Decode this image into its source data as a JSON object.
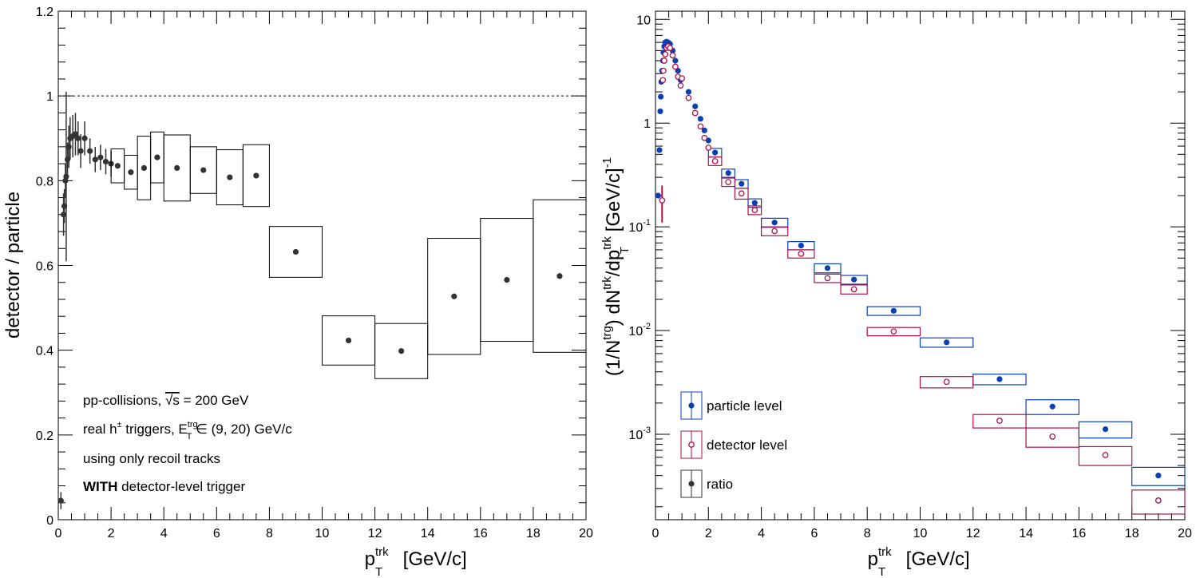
{
  "chart_data": [
    {
      "type": "scatter",
      "title": "",
      "xlabel": "p_T^trk [GeV/c]",
      "ylabel": "detector / particle",
      "xlim": [
        0,
        20
      ],
      "ylim": [
        0,
        1.2
      ],
      "x_ticks": [
        "0",
        "2",
        "4",
        "6",
        "8",
        "10",
        "12",
        "14",
        "16",
        "18",
        "20"
      ],
      "y_ticks": [
        "0",
        "0.2",
        "0.4",
        "0.6",
        "0.8",
        "1",
        "1.2"
      ],
      "reference_line": 1,
      "series": [
        {
          "name": "ratio",
          "color": "#333333",
          "points": [
            {
              "x": 0.1,
              "y": 0.045,
              "x_lo": 0.05,
              "x_hi": 0.15,
              "err": 0.02
            },
            {
              "x": 0.2,
              "y": 0.72,
              "err": 0.05
            },
            {
              "x": 0.23,
              "y": 0.74,
              "err": 0.04
            },
            {
              "x": 0.27,
              "y": 0.8,
              "err": 0.04
            },
            {
              "x": 0.3,
              "y": 0.81,
              "err": 0.2
            },
            {
              "x": 0.35,
              "y": 0.85,
              "err": 0.04
            },
            {
              "x": 0.4,
              "y": 0.88,
              "err": 0.05
            },
            {
              "x": 0.45,
              "y": 0.9,
              "err": 0.05
            },
            {
              "x": 0.55,
              "y": 0.905,
              "err": 0.05
            },
            {
              "x": 0.65,
              "y": 0.91,
              "err": 0.05
            },
            {
              "x": 0.75,
              "y": 0.9,
              "err": 0.04
            },
            {
              "x": 0.85,
              "y": 0.87,
              "err": 0.04
            },
            {
              "x": 1.0,
              "y": 0.9,
              "err": 0.04
            },
            {
              "x": 1.2,
              "y": 0.87,
              "err": 0.03
            },
            {
              "x": 1.4,
              "y": 0.85,
              "err": 0.03
            },
            {
              "x": 1.6,
              "y": 0.855,
              "err": 0.03
            },
            {
              "x": 1.8,
              "y": 0.845,
              "err": 0.03
            },
            {
              "x": 2.0,
              "y": 0.84,
              "err": 0.03
            },
            {
              "x": 2.25,
              "y": 0.835,
              "x_lo": 2.0,
              "x_hi": 2.5,
              "syst": 0.04
            },
            {
              "x": 2.75,
              "y": 0.82,
              "x_lo": 2.5,
              "x_hi": 3.0,
              "syst": 0.04
            },
            {
              "x": 3.25,
              "y": 0.83,
              "x_lo": 3.0,
              "x_hi": 3.5,
              "syst": 0.075
            },
            {
              "x": 3.75,
              "y": 0.855,
              "x_lo": 3.5,
              "x_hi": 4.0,
              "syst": 0.06
            },
            {
              "x": 4.5,
              "y": 0.83,
              "x_lo": 4.0,
              "x_hi": 5.0,
              "syst": 0.078
            },
            {
              "x": 5.5,
              "y": 0.825,
              "x_lo": 5.0,
              "x_hi": 6.0,
              "syst": 0.055
            },
            {
              "x": 6.5,
              "y": 0.808,
              "x_lo": 6.0,
              "x_hi": 7.0,
              "syst": 0.065
            },
            {
              "x": 7.5,
              "y": 0.812,
              "x_lo": 7.0,
              "x_hi": 8.0,
              "syst": 0.073
            },
            {
              "x": 9,
              "y": 0.632,
              "x_lo": 8,
              "x_hi": 10,
              "syst": 0.06
            },
            {
              "x": 11,
              "y": 0.423,
              "x_lo": 10,
              "x_hi": 12,
              "syst": 0.058
            },
            {
              "x": 13,
              "y": 0.398,
              "x_lo": 12,
              "x_hi": 14,
              "syst": 0.065
            },
            {
              "x": 15,
              "y": 0.527,
              "x_lo": 14,
              "x_hi": 16,
              "syst": 0.137
            },
            {
              "x": 17,
              "y": 0.566,
              "x_lo": 16,
              "x_hi": 18,
              "syst": 0.145
            },
            {
              "x": 19,
              "y": 0.575,
              "x_lo": 18,
              "x_hi": 20,
              "syst": 0.18
            }
          ]
        }
      ],
      "annotations": [
        {
          "parts": [
            {
              "t": "pp-collisions, "
            },
            {
              "t": "√s",
              "over": true
            },
            {
              "t": " = 200 GeV"
            }
          ]
        },
        {
          "parts": [
            {
              "t": "real h"
            },
            {
              "t": "±",
              "sup": true
            },
            {
              "t": " triggers, E"
            },
            {
              "t": "trg",
              "sup": true
            },
            {
              "t": "T",
              "sub": true
            },
            {
              "t": " ∈ (9, 20) GeV/c"
            }
          ]
        },
        {
          "parts": [
            {
              "t": "using only recoil tracks"
            }
          ]
        },
        {
          "parts": [
            {
              "t": "WITH",
              "bold": true
            },
            {
              "t": " detector-level trigger"
            }
          ]
        }
      ]
    },
    {
      "type": "scatter",
      "title": "",
      "xlabel": "p_T^trk [GeV/c]",
      "ylabel": "(1/N^trg) dN^trk/dp_T^trk [GeV/c]^-1",
      "xlim": [
        0,
        20
      ],
      "ylim": [
        0.00015,
        12
      ],
      "log_y": true,
      "x_ticks": [
        "0",
        "2",
        "4",
        "6",
        "8",
        "10",
        "12",
        "14",
        "16",
        "18",
        "20"
      ],
      "y_ticks": [
        {
          "base": "10",
          "exp": "-3",
          "value": 0.001
        },
        {
          "base": "10",
          "exp": "-2",
          "value": 0.01
        },
        {
          "base": "10",
          "exp": "-1",
          "value": 0.1
        },
        {
          "base": "1",
          "exp": "",
          "value": 1
        },
        {
          "base": "10",
          "exp": "",
          "value": 10
        }
      ],
      "legend": {
        "position": "bottom-left",
        "entries": [
          "particle level",
          "detector level",
          "ratio"
        ]
      },
      "series": [
        {
          "name": "particle level",
          "color": "#0a3fb5",
          "marker": "filled",
          "points": [
            {
              "x": 0.1,
              "y": 0.2
            },
            {
              "x": 0.15,
              "y": 0.55
            },
            {
              "x": 0.18,
              "y": 1.3
            },
            {
              "x": 0.2,
              "y": 1.8
            },
            {
              "x": 0.22,
              "y": 2.5
            },
            {
              "x": 0.25,
              "y": 3.2
            },
            {
              "x": 0.28,
              "y": 4.0
            },
            {
              "x": 0.3,
              "y": 4.8
            },
            {
              "x": 0.33,
              "y": 5.5
            },
            {
              "x": 0.37,
              "y": 6.0
            },
            {
              "x": 0.42,
              "y": 6.1
            },
            {
              "x": 0.48,
              "y": 6.0
            },
            {
              "x": 0.55,
              "y": 5.8
            },
            {
              "x": 0.65,
              "y": 5.0
            },
            {
              "x": 0.75,
              "y": 4.0
            },
            {
              "x": 0.85,
              "y": 3.2
            },
            {
              "x": 0.95,
              "y": 2.6
            },
            {
              "x": 1.25,
              "y": 2.0
            },
            {
              "x": 1.5,
              "y": 1.45
            },
            {
              "x": 1.7,
              "y": 1.1
            },
            {
              "x": 1.85,
              "y": 0.85
            },
            {
              "x": 2.0,
              "y": 0.68
            },
            {
              "x": 2.25,
              "y": 0.52,
              "x_lo": 2.0,
              "x_hi": 2.5,
              "syst": 0.05
            },
            {
              "x": 2.75,
              "y": 0.33,
              "x_lo": 2.5,
              "x_hi": 3.0,
              "syst": 0.03
            },
            {
              "x": 3.25,
              "y": 0.26,
              "x_lo": 3.0,
              "x_hi": 3.5,
              "syst": 0.025
            },
            {
              "x": 3.75,
              "y": 0.17,
              "x_lo": 3.5,
              "x_hi": 4.0,
              "syst": 0.016
            },
            {
              "x": 4.5,
              "y": 0.11,
              "x_lo": 4.0,
              "x_hi": 5.0,
              "syst": 0.011
            },
            {
              "x": 5.5,
              "y": 0.066,
              "x_lo": 5.0,
              "x_hi": 6.0,
              "syst": 0.006
            },
            {
              "x": 6.5,
              "y": 0.04,
              "x_lo": 6.0,
              "x_hi": 7.0,
              "syst": 0.004
            },
            {
              "x": 7.5,
              "y": 0.031,
              "x_lo": 7.0,
              "x_hi": 8.0,
              "syst": 0.003
            },
            {
              "x": 9,
              "y": 0.0155,
              "x_lo": 8,
              "x_hi": 10,
              "syst": 0.0015
            },
            {
              "x": 11,
              "y": 0.0077,
              "x_lo": 10,
              "x_hi": 12,
              "syst": 0.0008
            },
            {
              "x": 13,
              "y": 0.0034,
              "x_lo": 12,
              "x_hi": 14,
              "syst": 0.0004
            },
            {
              "x": 15,
              "y": 0.00185,
              "x_lo": 14,
              "x_hi": 16,
              "syst": 0.0003
            },
            {
              "x": 17,
              "y": 0.00112,
              "x_lo": 16,
              "x_hi": 18,
              "syst": 0.0002
            },
            {
              "x": 19,
              "y": 0.0004,
              "x_lo": 18,
              "x_hi": 20,
              "syst": 8e-05
            }
          ]
        },
        {
          "name": "detector level",
          "color": "#b0104a",
          "marker": "open",
          "points": [
            {
              "x": 0.25,
              "y": 0.18,
              "err": 0.07
            },
            {
              "x": 0.28,
              "y": 2.6
            },
            {
              "x": 0.3,
              "y": 3.2
            },
            {
              "x": 0.33,
              "y": 4.0
            },
            {
              "x": 0.37,
              "y": 4.6
            },
            {
              "x": 0.42,
              "y": 5.3
            },
            {
              "x": 0.48,
              "y": 5.5
            },
            {
              "x": 0.55,
              "y": 5.3
            },
            {
              "x": 0.65,
              "y": 4.5
            },
            {
              "x": 0.75,
              "y": 3.5
            },
            {
              "x": 0.85,
              "y": 2.8
            },
            {
              "x": 0.95,
              "y": 2.3
            },
            {
              "x": 1.0,
              "y": 2.7
            },
            {
              "x": 1.25,
              "y": 1.75
            },
            {
              "x": 1.5,
              "y": 1.25
            },
            {
              "x": 1.7,
              "y": 0.93
            },
            {
              "x": 1.85,
              "y": 0.72
            },
            {
              "x": 2.0,
              "y": 0.58
            },
            {
              "x": 2.25,
              "y": 0.43,
              "x_lo": 2.0,
              "x_hi": 2.5,
              "syst": 0.04
            },
            {
              "x": 2.75,
              "y": 0.27,
              "x_lo": 2.5,
              "x_hi": 3.0,
              "syst": 0.025
            },
            {
              "x": 3.25,
              "y": 0.21,
              "x_lo": 3.0,
              "x_hi": 3.5,
              "syst": 0.025
            },
            {
              "x": 3.75,
              "y": 0.145,
              "x_lo": 3.5,
              "x_hi": 4.0,
              "syst": 0.014
            },
            {
              "x": 4.5,
              "y": 0.091,
              "x_lo": 4.0,
              "x_hi": 5.0,
              "syst": 0.009
            },
            {
              "x": 5.5,
              "y": 0.055,
              "x_lo": 5.0,
              "x_hi": 6.0,
              "syst": 0.005
            },
            {
              "x": 6.5,
              "y": 0.032,
              "x_lo": 6.0,
              "x_hi": 7.0,
              "syst": 0.003
            },
            {
              "x": 7.5,
              "y": 0.025,
              "x_lo": 7.0,
              "x_hi": 8.0,
              "syst": 0.0025
            },
            {
              "x": 9,
              "y": 0.0098,
              "x_lo": 8,
              "x_hi": 10,
              "syst": 0.0009
            },
            {
              "x": 11,
              "y": 0.0032,
              "x_lo": 10,
              "x_hi": 12,
              "syst": 0.0004
            },
            {
              "x": 13,
              "y": 0.00135,
              "x_lo": 12,
              "x_hi": 14,
              "syst": 0.0002
            },
            {
              "x": 15,
              "y": 0.00095,
              "x_lo": 14,
              "x_hi": 16,
              "syst": 0.0002
            },
            {
              "x": 17,
              "y": 0.00063,
              "x_lo": 16,
              "x_hi": 18,
              "syst": 0.00013
            },
            {
              "x": 19,
              "y": 0.00023,
              "x_lo": 18,
              "x_hi": 20,
              "syst": 6e-05
            }
          ]
        }
      ]
    }
  ]
}
